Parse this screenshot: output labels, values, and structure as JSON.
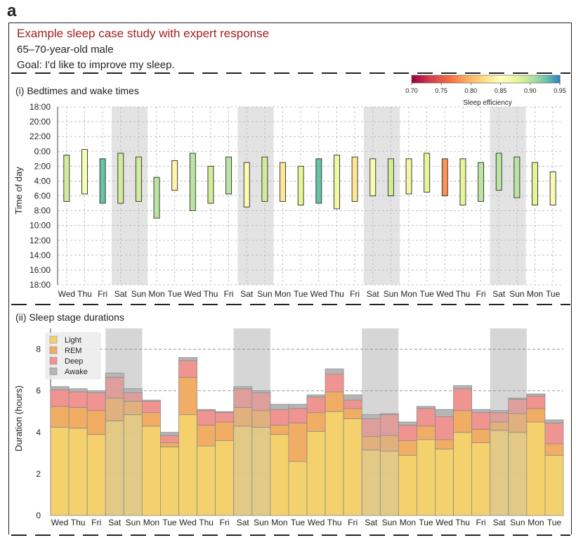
{
  "panel_label": "a",
  "header": {
    "title": "Example sleep case study with expert response",
    "demographic": "65–70-year-old male",
    "goal": "Goal: I'd like to improve my sleep."
  },
  "colors": {
    "title_red": "#a32020",
    "light": "#f5d16e",
    "rem": "#f2ad65",
    "deep": "#ef9490",
    "awake": "#b5b5b5",
    "weekend_shade": "#e3e3e3"
  },
  "days": [
    "Wed",
    "Thu",
    "Fri",
    "Sat",
    "Sun",
    "Mon",
    "Tue",
    "Wed",
    "Thu",
    "Fri",
    "Sat",
    "Sun",
    "Mon",
    "Tue",
    "Wed",
    "Thu",
    "Fri",
    "Sat",
    "Sun",
    "Mon",
    "Tue",
    "Wed",
    "Thu",
    "Fri",
    "Sat",
    "Sun",
    "Mon",
    "Tue"
  ],
  "weekend_pairs": [
    [
      3,
      4
    ],
    [
      10,
      11
    ],
    [
      17,
      18
    ],
    [
      24,
      25
    ]
  ],
  "chart_data": [
    {
      "type": "floating-bar",
      "title": "(i) Bedtimes and wake times",
      "ylabel": "Time of day",
      "ytick_labels": [
        "18:00",
        "20:00",
        "22:00",
        "0:00",
        "2:00",
        "4:00",
        "6:00",
        "8:00",
        "10:00",
        "12:00",
        "14:00",
        "16:00",
        "18:00"
      ],
      "ylim_hours_after_1800": [
        0,
        24
      ],
      "colorbar": {
        "label": "Sleep efficiency",
        "ticks": [
          "0.70",
          "0.75",
          "0.80",
          "0.85",
          "0.90",
          "0.95"
        ],
        "range": [
          0.7,
          0.95
        ],
        "colormap": "Spectral"
      },
      "bedtime": [
        "0:30",
        "23:45",
        "1:00",
        "0:15",
        "0:45",
        "3:30",
        "1:15",
        "0:15",
        "2:00",
        "0:45",
        "1:30",
        "0:45",
        "1:30",
        "2:00",
        "1:00",
        "0:30",
        "0:45",
        "1:00",
        "1:00",
        "1:00",
        "0:15",
        "1:00",
        "1:00",
        "1:30",
        "0:15",
        "0:45",
        "1:30",
        "2:45"
      ],
      "waketime": [
        "6:45",
        "5:45",
        "7:00",
        "7:00",
        "6:45",
        "9:00",
        "5:15",
        "8:00",
        "7:00",
        "5:45",
        "7:30",
        "6:45",
        "6:45",
        "7:15",
        "7:00",
        "7:45",
        "6:45",
        "6:00",
        "6:00",
        "5:45",
        "5:30",
        "6:00",
        "7:15",
        "6:45",
        "5:15",
        "6:15",
        "7:15",
        "7:15"
      ],
      "sleep_efficiency": [
        0.89,
        0.86,
        0.93,
        0.89,
        0.89,
        0.9,
        0.84,
        0.9,
        0.89,
        0.9,
        0.86,
        0.89,
        0.83,
        0.88,
        0.93,
        0.87,
        0.83,
        0.86,
        0.89,
        0.87,
        0.88,
        0.78,
        0.88,
        0.9,
        0.9,
        0.9,
        0.88,
        0.86
      ]
    },
    {
      "type": "stacked-bar",
      "title": "(ii) Sleep stage durations",
      "ylabel": "Duration (hours)",
      "ylim": [
        0,
        9
      ],
      "yticks": [
        0,
        2,
        4,
        6,
        8
      ],
      "legend_position": "top-left",
      "series": [
        {
          "name": "Light",
          "values": [
            4.25,
            4.2,
            3.9,
            4.55,
            4.85,
            4.3,
            3.3,
            4.85,
            3.35,
            3.6,
            4.3,
            4.25,
            3.9,
            2.6,
            4.05,
            5.0,
            4.65,
            3.15,
            3.1,
            2.9,
            3.65,
            3.2,
            4.0,
            3.5,
            4.1,
            4.0,
            4.5,
            2.9
          ]
        },
        {
          "name": "REM",
          "values": [
            1.0,
            1.0,
            1.15,
            1.1,
            0.65,
            0.65,
            0.2,
            1.8,
            1.0,
            0.9,
            0.9,
            0.8,
            0.45,
            1.85,
            0.9,
            0.95,
            0.5,
            0.65,
            0.75,
            0.7,
            0.65,
            0.45,
            1.05,
            0.65,
            0.4,
            0.9,
            0.65,
            0.55
          ]
        },
        {
          "name": "Deep",
          "values": [
            0.8,
            0.75,
            0.85,
            1.0,
            0.4,
            0.55,
            0.35,
            0.8,
            0.7,
            0.45,
            0.9,
            0.85,
            0.75,
            0.7,
            0.75,
            0.85,
            0.4,
            0.85,
            1.0,
            0.75,
            0.85,
            1.1,
            1.05,
            0.8,
            0.45,
            0.7,
            0.6,
            1.0
          ]
        },
        {
          "name": "Awake",
          "values": [
            0.15,
            0.15,
            0.1,
            0.2,
            0.2,
            0.05,
            0.15,
            0.15,
            0.05,
            0.05,
            0.1,
            0.1,
            0.25,
            0.2,
            0.1,
            0.25,
            0.25,
            0.2,
            0.05,
            0.15,
            0.1,
            0.35,
            0.15,
            0.15,
            0.1,
            0.05,
            0.1,
            0.15
          ]
        }
      ]
    }
  ]
}
